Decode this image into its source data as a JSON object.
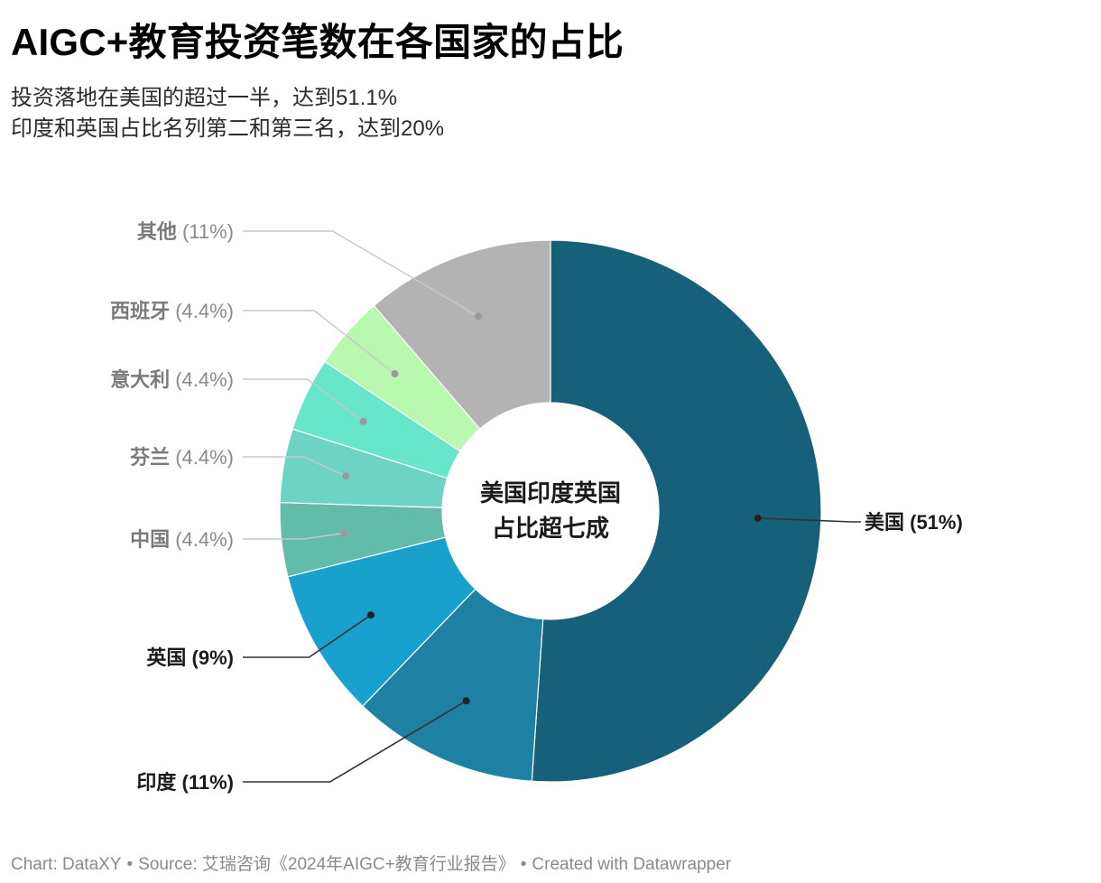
{
  "header": {
    "title": "AIGC+教育投资笔数在各国家的占比",
    "subtitle_lines": [
      "投资落地在美国的超过一半，达到51.1%",
      "印度和英国占比名列第二和第三名，达到20%"
    ]
  },
  "chart_data": {
    "type": "pie",
    "variant": "donut",
    "center_text": [
      "美国印度英国",
      "占比超七成"
    ],
    "slices": [
      {
        "name": "美国",
        "value": 51.1,
        "label": "美国",
        "pct_label": "(51%)",
        "color": "#17607a",
        "emphasis": true
      },
      {
        "name": "印度",
        "value": 11.1,
        "label": "印度",
        "pct_label": "(11%)",
        "color": "#1e81a3",
        "emphasis": true
      },
      {
        "name": "英国",
        "value": 8.9,
        "label": "英国",
        "pct_label": "(9%)",
        "color": "#18a1cd",
        "emphasis": true
      },
      {
        "name": "中国",
        "value": 4.4,
        "label": "中国",
        "pct_label": "(4.4%)",
        "color": "#63bba9",
        "emphasis": false
      },
      {
        "name": "芬兰",
        "value": 4.4,
        "label": "芬兰",
        "pct_label": "(4.4%)",
        "color": "#6dd4c4",
        "emphasis": false
      },
      {
        "name": "意大利",
        "value": 4.4,
        "label": "意大利",
        "pct_label": "(4.4%)",
        "color": "#67e6c9",
        "emphasis": false
      },
      {
        "name": "西班牙",
        "value": 4.4,
        "label": "西班牙",
        "pct_label": "(4.4%)",
        "color": "#baf7b0",
        "emphasis": false
      },
      {
        "name": "其他",
        "value": 11.3,
        "label": "其他",
        "pct_label": "(11%)",
        "color": "#b3b3b3",
        "emphasis": false
      }
    ]
  },
  "footer": {
    "chart_credit": "Chart: DataXY",
    "source": "Source: 艾瑞咨询《2024年AIGC+教育行业报告》",
    "created_with": "Created with Datawrapper"
  }
}
